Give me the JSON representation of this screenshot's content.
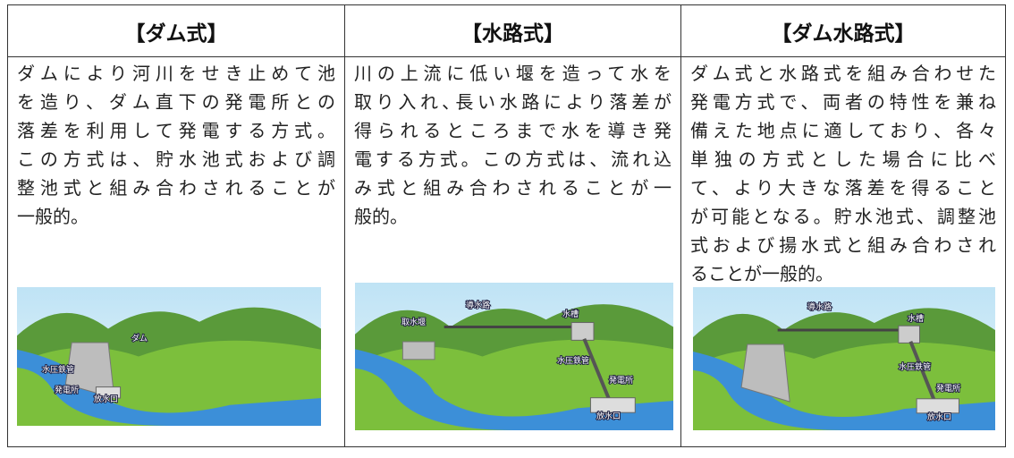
{
  "columns": [
    {
      "header": "【ダム式】",
      "lines": [
        "ダムにより河川をせき止めて池",
        "を造り、ダム直下の発電所との",
        "落差を利用して発電する方式。",
        "この方式は、貯水池式および調",
        "整池式と組み合わされることが",
        "一般的。"
      ],
      "figure_labels": [
        "ダム",
        "水圧鉄管",
        "発電所",
        "放水口"
      ]
    },
    {
      "header": "【水路式】",
      "lines": [
        "川の上流に低い堰を造って水を",
        "取り入れ､長い水路により落差が",
        "得られるところまで水を導き発",
        "電する方式。この方式は、流れ込",
        "み式と組み合わされることが一",
        "般的。"
      ],
      "figure_labels": [
        "取水堰",
        "導水路",
        "水槽",
        "水圧鉄管",
        "発電所",
        "放水口"
      ]
    },
    {
      "header": "【ダム水路式】",
      "lines": [
        "ダム式と水路式を組み合わせた",
        "発電方式で、両者の特性を兼ね",
        "備えた地点に適しており、各々",
        "単独の方式とした場合に比べ",
        "て、より大きな落差を得ること",
        "が可能となる。貯水池式、調整池",
        "式および揚水式と組み合わされ",
        "ることが一般的。"
      ],
      "figure_labels": [
        "導水路",
        "水槽",
        "水圧鉄管",
        "発電所",
        "放水口"
      ]
    }
  ]
}
